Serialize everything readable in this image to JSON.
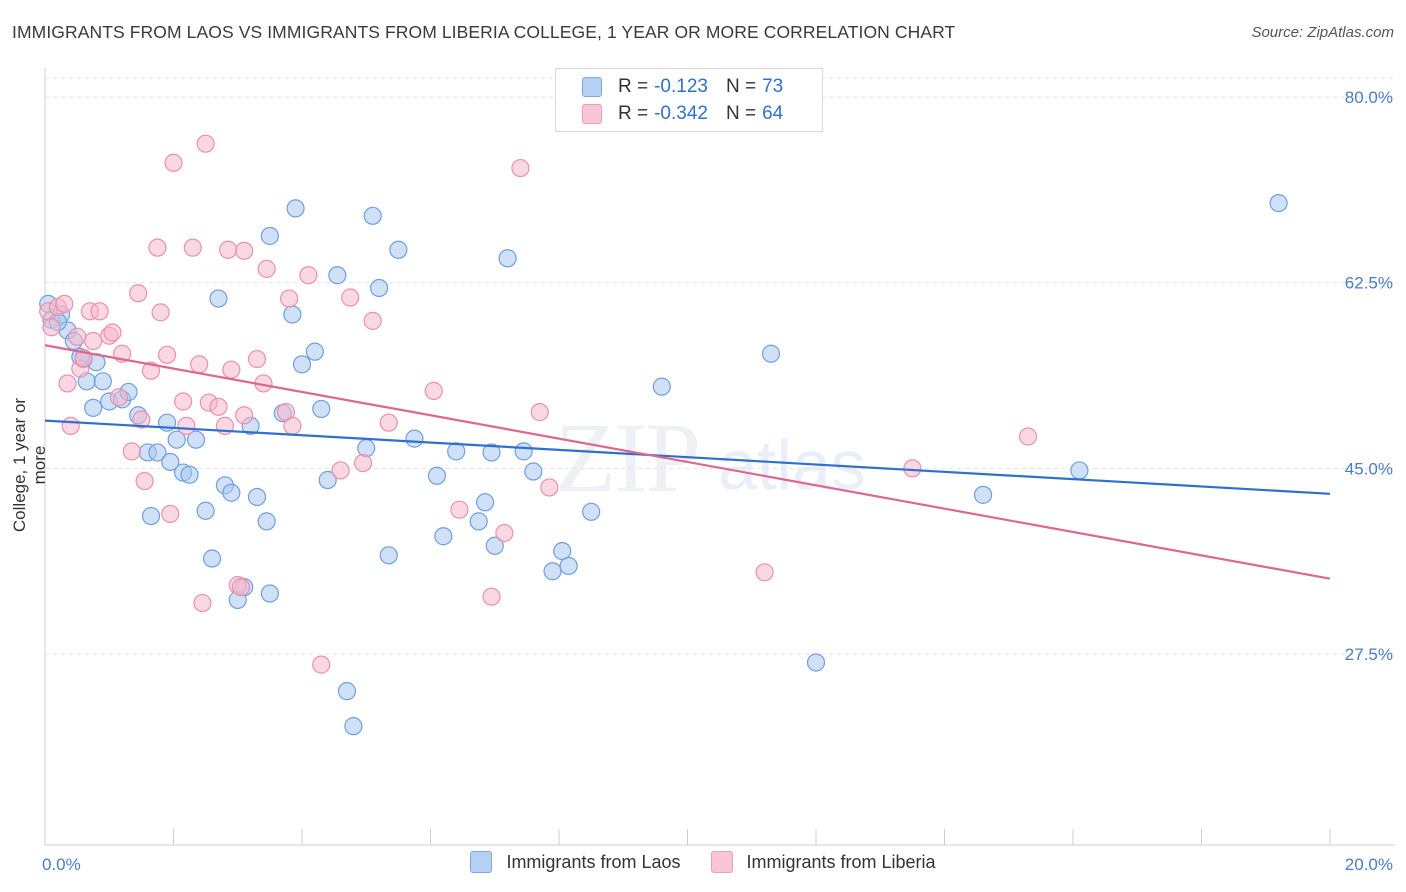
{
  "title": "IMMIGRANTS FROM LAOS VS IMMIGRANTS FROM LIBERIA COLLEGE, 1 YEAR OR MORE CORRELATION CHART",
  "source": "Source: ZipAtlas.com",
  "watermark": {
    "zip": "ZIP",
    "atlas": "atlas"
  },
  "legend": {
    "laos": {
      "r_label": "R =",
      "r_value": "-0.123",
      "n_label": "N =",
      "n_value": "73"
    },
    "liberia": {
      "r_label": "R =",
      "r_value": "-0.342",
      "n_label": "N =",
      "n_value": "64"
    }
  },
  "bottom_legend": {
    "laos": "Immigrants from Laos",
    "liberia": "Immigrants from Liberia"
  },
  "colors": {
    "laos_fill": "#a9c8f0",
    "laos_stroke": "#6f9fdc",
    "laos_line": "#2f6fd0",
    "liberia_fill": "#f6b8cc",
    "liberia_stroke": "#ea8fae",
    "liberia_line": "#e0668f",
    "axis_text": "#4a7cc8",
    "grid": "#e3e3e3"
  },
  "chart_data": {
    "type": "scatter",
    "title": "IMMIGRANTS FROM LAOS VS IMMIGRANTS FROM LIBERIA COLLEGE, 1 YEAR OR MORE CORRELATION CHART",
    "xlabel": "",
    "ylabel": "College, 1 year or more",
    "xlim": [
      0,
      20
    ],
    "ylim": [
      10,
      82
    ],
    "x_ticks": [
      {
        "value": 0,
        "label": "0.0%"
      },
      {
        "value": 20,
        "label": "20.0%"
      }
    ],
    "y_ticks": [
      {
        "value": 80,
        "label": "80.0%"
      },
      {
        "value": 62.5,
        "label": "62.5%"
      },
      {
        "value": 45,
        "label": "45.0%"
      },
      {
        "value": 27.5,
        "label": "27.5%"
      }
    ],
    "grid": true,
    "legend_position": "top-center",
    "series": [
      {
        "name": "Immigrants from Laos",
        "color": "#a9c8f0",
        "trend": {
          "x": [
            0,
            20
          ],
          "y": [
            49.5,
            42.6
          ]
        },
        "points": [
          [
            0.05,
            60.5
          ],
          [
            0.1,
            59.0
          ],
          [
            0.25,
            59.5
          ],
          [
            0.35,
            58.0
          ],
          [
            0.45,
            57.0
          ],
          [
            0.55,
            55.5
          ],
          [
            0.65,
            53.2
          ],
          [
            0.8,
            55.0
          ],
          [
            0.9,
            53.2
          ],
          [
            0.75,
            50.7
          ],
          [
            1.0,
            51.3
          ],
          [
            1.2,
            51.5
          ],
          [
            1.3,
            52.2
          ],
          [
            1.45,
            50.0
          ],
          [
            1.6,
            46.5
          ],
          [
            1.75,
            46.5
          ],
          [
            1.9,
            49.3
          ],
          [
            1.65,
            40.5
          ],
          [
            1.95,
            45.6
          ],
          [
            2.05,
            47.7
          ],
          [
            2.15,
            44.6
          ],
          [
            2.25,
            44.4
          ],
          [
            2.35,
            47.7
          ],
          [
            2.5,
            41.0
          ],
          [
            2.6,
            36.5
          ],
          [
            2.7,
            61.0
          ],
          [
            2.8,
            43.4
          ],
          [
            2.9,
            42.7
          ],
          [
            3.0,
            32.6
          ],
          [
            3.1,
            33.8
          ],
          [
            3.2,
            49.0
          ],
          [
            3.3,
            42.3
          ],
          [
            3.45,
            40.0
          ],
          [
            3.5,
            33.2
          ],
          [
            3.5,
            66.9
          ],
          [
            3.7,
            50.2
          ],
          [
            3.85,
            59.5
          ],
          [
            3.9,
            69.5
          ],
          [
            4.0,
            54.8
          ],
          [
            4.2,
            56.0
          ],
          [
            4.3,
            50.6
          ],
          [
            4.4,
            43.9
          ],
          [
            4.55,
            63.2
          ],
          [
            4.7,
            24.0
          ],
          [
            4.8,
            20.7
          ],
          [
            5.0,
            46.9
          ],
          [
            5.1,
            68.8
          ],
          [
            5.2,
            62.0
          ],
          [
            5.35,
            36.8
          ],
          [
            5.5,
            65.6
          ],
          [
            5.75,
            47.8
          ],
          [
            6.1,
            44.3
          ],
          [
            6.2,
            38.6
          ],
          [
            6.4,
            46.6
          ],
          [
            6.75,
            40.0
          ],
          [
            6.85,
            41.8
          ],
          [
            7.0,
            37.7
          ],
          [
            7.2,
            64.8
          ],
          [
            6.95,
            46.5
          ],
          [
            7.45,
            46.6
          ],
          [
            7.6,
            44.7
          ],
          [
            7.9,
            35.3
          ],
          [
            8.05,
            37.2
          ],
          [
            8.15,
            35.8
          ],
          [
            8.5,
            40.9
          ],
          [
            9.6,
            52.7
          ],
          [
            11.3,
            55.8
          ],
          [
            12.0,
            26.7
          ],
          [
            14.6,
            42.5
          ],
          [
            16.1,
            44.8
          ],
          [
            19.2,
            70.0
          ],
          [
            0.2,
            58.8
          ],
          [
            0.6,
            55.3
          ]
        ]
      },
      {
        "name": "Immigrants from Liberia",
        "color": "#f6b8cc",
        "trend": {
          "x": [
            0,
            20
          ],
          "y": [
            56.6,
            34.6
          ]
        },
        "points": [
          [
            0.05,
            59.8
          ],
          [
            0.1,
            58.3
          ],
          [
            0.2,
            60.2
          ],
          [
            0.3,
            60.5
          ],
          [
            0.35,
            53.0
          ],
          [
            0.4,
            49.0
          ],
          [
            0.5,
            57.4
          ],
          [
            0.55,
            54.4
          ],
          [
            0.6,
            55.4
          ],
          [
            0.7,
            59.8
          ],
          [
            0.75,
            57.0
          ],
          [
            0.85,
            59.8
          ],
          [
            1.0,
            57.5
          ],
          [
            1.05,
            57.8
          ],
          [
            1.15,
            51.7
          ],
          [
            1.2,
            55.8
          ],
          [
            1.35,
            46.6
          ],
          [
            1.45,
            61.5
          ],
          [
            1.5,
            49.6
          ],
          [
            1.55,
            43.8
          ],
          [
            1.65,
            54.2
          ],
          [
            1.75,
            65.8
          ],
          [
            1.8,
            59.7
          ],
          [
            1.9,
            55.7
          ],
          [
            1.95,
            40.7
          ],
          [
            2.0,
            73.8
          ],
          [
            2.15,
            51.3
          ],
          [
            2.2,
            49.0
          ],
          [
            2.3,
            65.8
          ],
          [
            2.4,
            54.8
          ],
          [
            2.45,
            32.3
          ],
          [
            2.5,
            75.6
          ],
          [
            2.55,
            51.2
          ],
          [
            2.7,
            50.8
          ],
          [
            2.8,
            49.0
          ],
          [
            2.85,
            65.6
          ],
          [
            2.9,
            54.3
          ],
          [
            3.0,
            34.0
          ],
          [
            3.05,
            33.8
          ],
          [
            3.1,
            50.0
          ],
          [
            3.1,
            65.5
          ],
          [
            3.3,
            55.3
          ],
          [
            3.4,
            53.0
          ],
          [
            3.45,
            63.8
          ],
          [
            3.75,
            50.3
          ],
          [
            3.8,
            61.0
          ],
          [
            3.85,
            49.0
          ],
          [
            4.1,
            63.2
          ],
          [
            4.3,
            26.5
          ],
          [
            4.6,
            44.8
          ],
          [
            4.75,
            61.1
          ],
          [
            4.95,
            45.5
          ],
          [
            5.1,
            58.9
          ],
          [
            5.35,
            49.3
          ],
          [
            6.05,
            52.3
          ],
          [
            6.45,
            41.1
          ],
          [
            6.95,
            32.9
          ],
          [
            7.15,
            38.9
          ],
          [
            7.4,
            73.3
          ],
          [
            7.7,
            50.3
          ],
          [
            7.85,
            43.2
          ],
          [
            11.2,
            35.2
          ],
          [
            13.5,
            45.0
          ],
          [
            15.3,
            48.0
          ]
        ]
      }
    ]
  }
}
